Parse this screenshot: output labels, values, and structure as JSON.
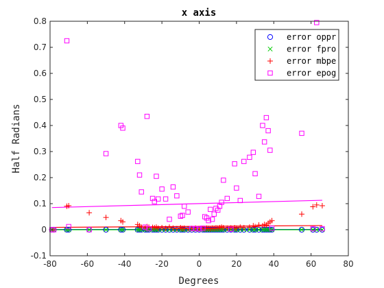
{
  "chart_data": {
    "type": "scatter",
    "title": "x axis",
    "xlabel": "Degrees",
    "ylabel": "Half Radians",
    "xlim": [
      -80,
      80
    ],
    "ylim": [
      -0.1,
      0.8
    ],
    "xticks": [
      -80,
      -60,
      -40,
      -20,
      0,
      20,
      40,
      60,
      80
    ],
    "yticks": [
      -0.1,
      0,
      0.1,
      0.2,
      0.3,
      0.4,
      0.5,
      0.6,
      0.7,
      0.8
    ],
    "legend_position": "top-right",
    "x": [
      -79,
      -78,
      -71,
      -70,
      -59,
      -50,
      -42,
      -41,
      -33,
      -32,
      -31,
      -29,
      -28,
      -27,
      -25,
      -24,
      -23,
      -22,
      -20,
      -18,
      -16,
      -14,
      -12,
      -10,
      -9,
      -8,
      -6,
      -4,
      -2,
      0,
      2,
      3,
      4,
      5,
      6,
      7,
      8,
      9,
      10,
      11,
      12,
      13,
      15,
      17,
      19,
      20,
      22,
      24,
      27,
      29,
      30,
      32,
      34,
      35,
      36,
      37,
      38,
      39,
      55,
      61,
      63,
      66
    ],
    "series": [
      {
        "name": "error oppr",
        "color": "#0000ff",
        "marker": "circle",
        "values": [
          0,
          0,
          0,
          0,
          0,
          0,
          0,
          0,
          0,
          0,
          0,
          0,
          0,
          0,
          0,
          0,
          0,
          0,
          0,
          0,
          0,
          0,
          0,
          0,
          0,
          0,
          0,
          0,
          0,
          0,
          0,
          0,
          0,
          0,
          0,
          0,
          0,
          0,
          0,
          0,
          0,
          0,
          0,
          0,
          0,
          0,
          0,
          0,
          0,
          0,
          0,
          0,
          0,
          0,
          0,
          0,
          0,
          0,
          0,
          0,
          0,
          0
        ]
      },
      {
        "name": "error fpro",
        "color": "#00cc00",
        "marker": "x",
        "values": [
          0,
          0,
          0,
          0,
          0,
          0,
          0,
          0,
          0,
          0,
          0,
          0,
          0,
          0,
          0,
          0,
          0,
          0,
          0,
          0,
          0,
          0,
          0,
          0,
          0,
          0,
          0,
          0,
          0,
          0,
          0,
          0,
          0,
          0,
          0,
          0,
          0,
          0,
          0,
          0,
          0,
          0,
          0,
          0,
          0,
          0,
          0,
          0,
          0,
          0,
          0,
          0,
          0,
          0,
          0,
          0,
          0,
          0,
          0,
          0,
          0,
          0
        ]
      },
      {
        "name": "error mbpe",
        "color": "#ff0000",
        "marker": "plus",
        "values": [
          0,
          0,
          0.09,
          0.092,
          0.065,
          0.047,
          0.035,
          0.03,
          0.02,
          0.015,
          0.01,
          0.008,
          0.012,
          0.01,
          0.009,
          0.008,
          0.01,
          0.006,
          0.008,
          0.005,
          0.01,
          0.006,
          0.004,
          0.008,
          0.005,
          0.006,
          0.004,
          0.005,
          0.006,
          0.004,
          0.005,
          0.004,
          0.006,
          0.005,
          0.004,
          0.006,
          0.005,
          0.007,
          0.006,
          0.008,
          0.01,
          0.008,
          0.006,
          0.007,
          0.008,
          0.006,
          0.01,
          0.008,
          0.01,
          0.015,
          0.012,
          0.018,
          0.015,
          0.02,
          0.018,
          0.025,
          0.03,
          0.035,
          0.06,
          0.088,
          0.095,
          0.092
        ]
      },
      {
        "name": "error epog",
        "color": "#ff00ff",
        "marker": "square",
        "values": [
          0,
          0,
          0.725,
          0.012,
          0,
          0.292,
          0.4,
          0.39,
          0.262,
          0.21,
          0.145,
          0.01,
          0.435,
          0.004,
          0.12,
          0.108,
          0.205,
          0.118,
          0.156,
          0.118,
          0.04,
          0.164,
          0.13,
          0.052,
          0.055,
          0.09,
          0.068,
          0.005,
          0.004,
          0.003,
          0.006,
          0.05,
          0.045,
          0.035,
          0.078,
          0.04,
          0.06,
          0.082,
          0.075,
          0.09,
          0.105,
          0.19,
          0.12,
          0.002,
          0.253,
          0.16,
          0.112,
          0.262,
          0.278,
          0.297,
          0.215,
          0.128,
          0.4,
          0.337,
          0.43,
          0.38,
          0.305,
          0.006,
          0.37,
          0.004,
          0.795,
          0.004
        ]
      }
    ],
    "trend_lines": [
      {
        "series": "error oppr",
        "color": "#0000ff",
        "x": [
          -79,
          66
        ],
        "y": [
          0.001,
          0.001
        ]
      },
      {
        "series": "error fpro",
        "color": "#00cc00",
        "x": [
          -79,
          66
        ],
        "y": [
          0,
          0
        ]
      },
      {
        "series": "error mbpe",
        "color": "#ff0000",
        "x": [
          -79,
          66
        ],
        "y": [
          0.009,
          0.016
        ]
      },
      {
        "series": "error epog",
        "color": "#ff00ff",
        "x": [
          -79,
          66
        ],
        "y": [
          0.085,
          0.113
        ]
      }
    ]
  }
}
